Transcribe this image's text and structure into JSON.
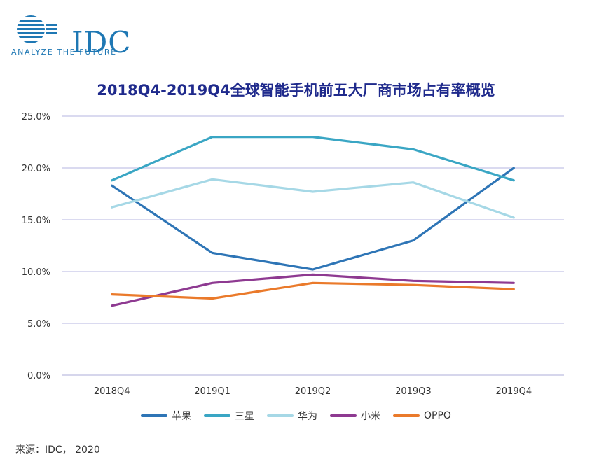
{
  "logo": {
    "name": "IDC",
    "tagline": "ANALYZE THE FUTURE"
  },
  "source": "来源：IDC， 2020",
  "chart_data": {
    "type": "line",
    "title": "2018Q4-2019Q4全球智能手机前五大厂商市场占有率概览",
    "categories": [
      "2018Q4",
      "2019Q1",
      "2019Q2",
      "2019Q3",
      "2019Q4"
    ],
    "y_ticks": [
      "25.0%",
      "20.0%",
      "15.0%",
      "10.0%",
      "5.0%",
      "0.0%"
    ],
    "ylim": [
      0,
      25
    ],
    "grid": true,
    "legend_position": "bottom",
    "series": [
      {
        "name": "苹果",
        "color": "#2e75b6",
        "values": [
          18.3,
          11.8,
          10.2,
          13.0,
          20.0
        ]
      },
      {
        "name": "三星",
        "color": "#3aa6c4",
        "values": [
          18.8,
          23.0,
          23.0,
          21.8,
          18.8
        ]
      },
      {
        "name": "华为",
        "color": "#a6d8e6",
        "values": [
          16.2,
          18.9,
          17.7,
          18.6,
          15.2
        ]
      },
      {
        "name": "小米",
        "color": "#8e3a91",
        "values": [
          6.7,
          8.9,
          9.7,
          9.1,
          8.9
        ]
      },
      {
        "name": "OPPO",
        "color": "#ea7a2b",
        "values": [
          7.8,
          7.4,
          8.9,
          8.7,
          8.3
        ]
      }
    ]
  }
}
